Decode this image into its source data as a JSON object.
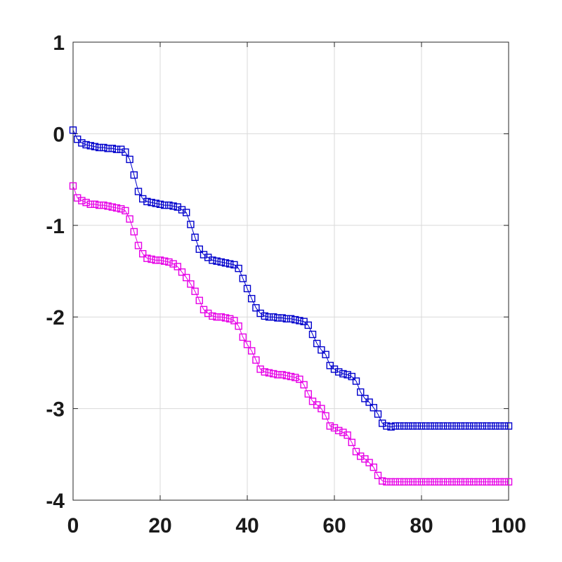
{
  "chart_data": {
    "type": "line",
    "title": "",
    "xlabel": "",
    "ylabel": "",
    "xlim": [
      0,
      100
    ],
    "ylim": [
      -4,
      1
    ],
    "xticks": [
      0,
      20,
      40,
      60,
      80,
      100
    ],
    "yticks": [
      -4,
      -3,
      -2,
      -1,
      0,
      1
    ],
    "grid": true,
    "marker": "square",
    "x": [
      0,
      1,
      2,
      3,
      4,
      5,
      6,
      7,
      8,
      9,
      10,
      11,
      12,
      13,
      14,
      15,
      16,
      17,
      18,
      19,
      20,
      21,
      22,
      23,
      24,
      25,
      26,
      27,
      28,
      29,
      30,
      31,
      32,
      33,
      34,
      35,
      36,
      37,
      38,
      39,
      40,
      41,
      42,
      43,
      44,
      45,
      46,
      47,
      48,
      49,
      50,
      51,
      52,
      53,
      54,
      55,
      56,
      57,
      58,
      59,
      60,
      61,
      62,
      63,
      64,
      65,
      66,
      67,
      68,
      69,
      70,
      71,
      72,
      73,
      74,
      75,
      76,
      77,
      78,
      79,
      80,
      81,
      82,
      83,
      84,
      85,
      86,
      87,
      88,
      89,
      90,
      91,
      92,
      93,
      94,
      95,
      96,
      97,
      98,
      99,
      100
    ],
    "series": [
      {
        "color": "#0000cc",
        "values": [
          0.04,
          -0.06,
          -0.1,
          -0.12,
          -0.13,
          -0.14,
          -0.15,
          -0.15,
          -0.16,
          -0.16,
          -0.17,
          -0.17,
          -0.2,
          -0.28,
          -0.45,
          -0.63,
          -0.71,
          -0.74,
          -0.75,
          -0.76,
          -0.77,
          -0.78,
          -0.78,
          -0.79,
          -0.8,
          -0.83,
          -0.86,
          -0.99,
          -1.13,
          -1.26,
          -1.32,
          -1.35,
          -1.38,
          -1.39,
          -1.4,
          -1.41,
          -1.42,
          -1.43,
          -1.47,
          -1.58,
          -1.69,
          -1.8,
          -1.9,
          -1.96,
          -1.99,
          -2.0,
          -2.0,
          -2.01,
          -2.01,
          -2.02,
          -2.02,
          -2.03,
          -2.04,
          -2.05,
          -2.09,
          -2.19,
          -2.29,
          -2.36,
          -2.41,
          -2.53,
          -2.57,
          -2.6,
          -2.62,
          -2.63,
          -2.65,
          -2.7,
          -2.82,
          -2.89,
          -2.93,
          -2.99,
          -3.06,
          -3.16,
          -3.19,
          -3.2,
          -3.19,
          -3.19,
          -3.19,
          -3.19,
          -3.19,
          -3.19,
          -3.19,
          -3.19,
          -3.19,
          -3.19,
          -3.19,
          -3.19,
          -3.19,
          -3.19,
          -3.19,
          -3.19,
          -3.19,
          -3.19,
          -3.19,
          -3.19,
          -3.19,
          -3.19,
          -3.19,
          -3.19,
          -3.19,
          -3.19,
          -3.19
        ]
      },
      {
        "color": "#e600e6",
        "values": [
          -0.57,
          -0.7,
          -0.73,
          -0.75,
          -0.77,
          -0.77,
          -0.78,
          -0.78,
          -0.79,
          -0.8,
          -0.81,
          -0.82,
          -0.84,
          -0.93,
          -1.07,
          -1.22,
          -1.31,
          -1.36,
          -1.37,
          -1.38,
          -1.38,
          -1.39,
          -1.4,
          -1.42,
          -1.45,
          -1.51,
          -1.57,
          -1.64,
          -1.72,
          -1.82,
          -1.92,
          -1.96,
          -1.99,
          -2.0,
          -2.0,
          -2.01,
          -2.02,
          -2.04,
          -2.1,
          -2.22,
          -2.3,
          -2.37,
          -2.47,
          -2.57,
          -2.6,
          -2.61,
          -2.62,
          -2.63,
          -2.63,
          -2.64,
          -2.65,
          -2.66,
          -2.68,
          -2.74,
          -2.84,
          -2.92,
          -2.96,
          -3.0,
          -3.08,
          -3.19,
          -3.21,
          -3.24,
          -3.26,
          -3.29,
          -3.37,
          -3.47,
          -3.52,
          -3.55,
          -3.59,
          -3.64,
          -3.73,
          -3.79,
          -3.8,
          -3.8,
          -3.8,
          -3.8,
          -3.8,
          -3.8,
          -3.8,
          -3.8,
          -3.8,
          -3.8,
          -3.8,
          -3.8,
          -3.8,
          -3.8,
          -3.8,
          -3.8,
          -3.8,
          -3.8,
          -3.8,
          -3.8,
          -3.8,
          -3.8,
          -3.8,
          -3.8,
          -3.8,
          -3.8,
          -3.8,
          -3.8,
          -3.8
        ]
      }
    ]
  }
}
